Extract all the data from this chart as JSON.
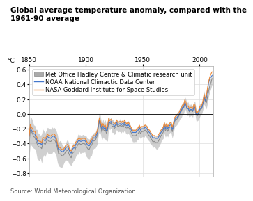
{
  "title": "Global average temperature anomaly, compared with the\n1961-90 average",
  "ylabel_label": "°C",
  "source": "Source: World Meteorological Organization",
  "xlim": [
    1850,
    2012
  ],
  "ylim": [
    -0.85,
    0.65
  ],
  "xticks": [
    1850,
    1900,
    1950,
    2000
  ],
  "yticks": [
    -0.8,
    -0.6,
    -0.4,
    -0.2,
    0.0,
    0.2,
    0.4,
    0.6
  ],
  "legend_labels": [
    "Met Office Hadley Centre & Climatic research unit",
    "NOAA National Climactic Data Center",
    "NASA Goddard Institute for Space Studies"
  ],
  "hadcrut_color": "#888888",
  "band_color": "#aaaaaa",
  "noaa_color": "#4477cc",
  "nasa_color": "#ee8833",
  "background_color": "#ffffff",
  "grid_color": "#dddddd",
  "title_fontsize": 7.5,
  "tick_fontsize": 6.5,
  "source_fontsize": 6.0,
  "legend_fontsize": 6.0
}
